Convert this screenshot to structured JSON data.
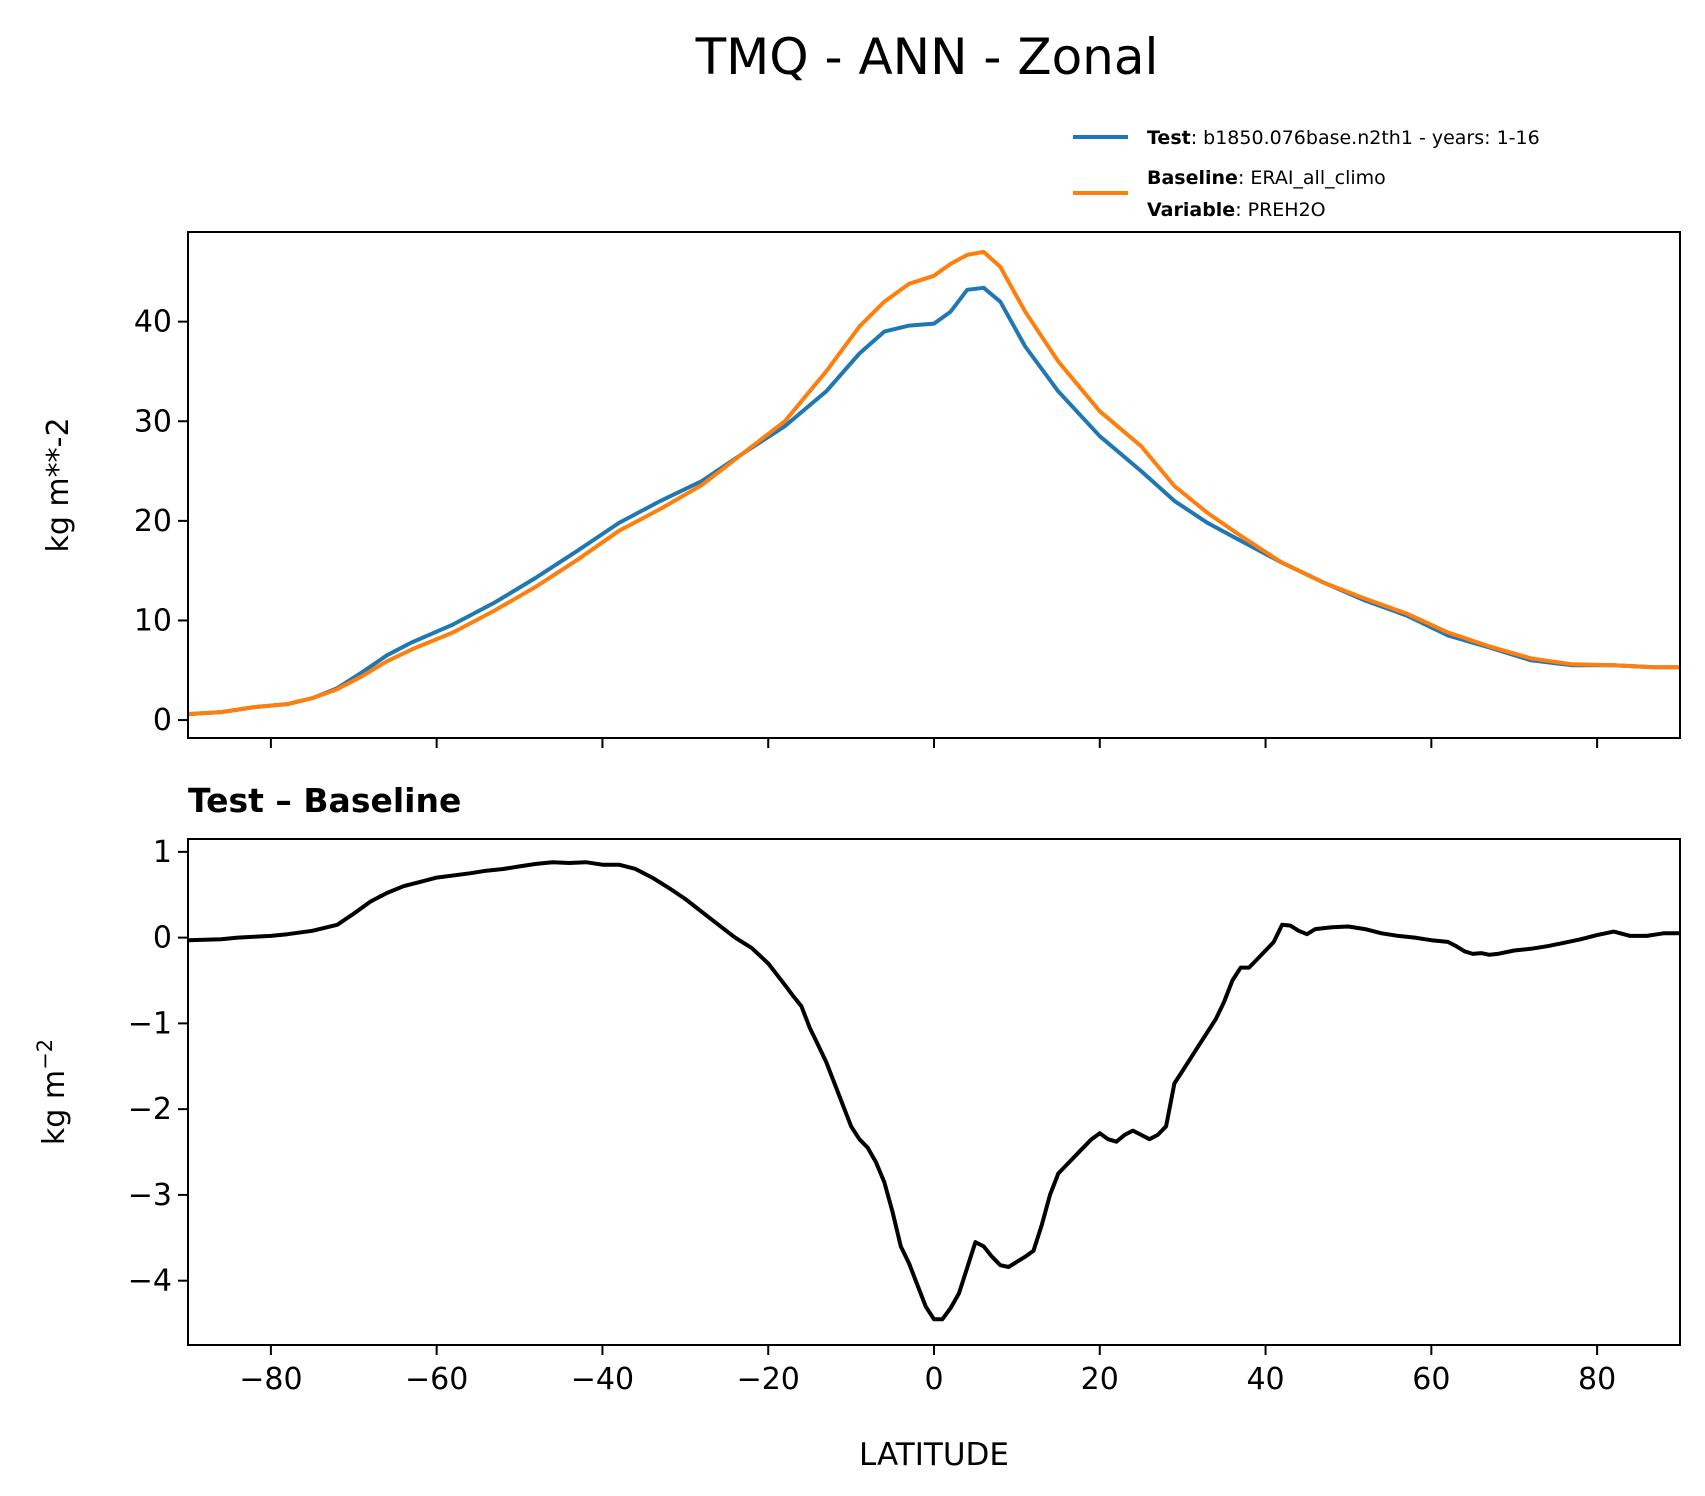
{
  "title": "TMQ - ANN - Zonal",
  "legend": {
    "test_label": "Test",
    "test_text": ": b1850.076base.n2th1 - years: 1-16",
    "baseline_label": "Baseline",
    "baseline_text": ": ERAI_all_climo",
    "variable_label": "Variable",
    "variable_text": ": PREH2O"
  },
  "colors": {
    "test": "#1f77b4",
    "baseline": "#ff7f0e",
    "diff": "#000000"
  },
  "chart_data": [
    {
      "type": "line",
      "ylabel": "kg m**-2",
      "xlim": [
        -90,
        90
      ],
      "ylim": [
        -1.8,
        49
      ],
      "yticks": [
        0,
        10,
        20,
        30,
        40
      ],
      "xticks": [
        -80,
        -60,
        -40,
        -20,
        0,
        20,
        40,
        60,
        80
      ],
      "series": [
        {
          "name": "Test",
          "x": [
            -90,
            -86,
            -82,
            -78,
            -75,
            -72,
            -69,
            -66,
            -63,
            -58,
            -53,
            -48,
            -43,
            -38,
            -33,
            -28,
            -23,
            -18,
            -13,
            -9,
            -6,
            -3,
            0,
            2,
            4,
            6,
            8,
            11,
            15,
            20,
            25,
            29,
            33,
            37,
            42,
            47,
            52,
            57,
            62,
            67,
            72,
            77,
            82,
            87,
            90
          ],
          "values": [
            0.6,
            0.8,
            1.3,
            1.6,
            2.2,
            3.2,
            4.8,
            6.5,
            7.8,
            9.6,
            11.8,
            14.3,
            17.0,
            19.8,
            22.0,
            24.0,
            26.8,
            29.5,
            33.0,
            36.8,
            39.0,
            39.6,
            39.8,
            41.0,
            43.2,
            43.4,
            42.0,
            37.5,
            33.0,
            28.5,
            25.0,
            22.0,
            19.8,
            18.0,
            15.8,
            13.8,
            12.0,
            10.5,
            8.5,
            7.3,
            6.0,
            5.5,
            5.5,
            5.3,
            5.3
          ]
        },
        {
          "name": "Baseline",
          "x": [
            -90,
            -86,
            -82,
            -78,
            -75,
            -72,
            -69,
            -66,
            -63,
            -58,
            -53,
            -48,
            -43,
            -38,
            -33,
            -28,
            -23,
            -18,
            -13,
            -9,
            -6,
            -3,
            0,
            2,
            4,
            6,
            8,
            11,
            15,
            20,
            25,
            29,
            33,
            37,
            42,
            47,
            52,
            57,
            62,
            67,
            72,
            77,
            82,
            87,
            90
          ],
          "values": [
            0.6,
            0.8,
            1.3,
            1.6,
            2.2,
            3.1,
            4.4,
            5.9,
            7.1,
            8.8,
            11.0,
            13.4,
            16.1,
            19.0,
            21.2,
            23.6,
            26.8,
            30.0,
            35.0,
            39.5,
            42.0,
            43.8,
            44.6,
            45.8,
            46.7,
            47.0,
            45.5,
            41.0,
            36.0,
            31.0,
            27.5,
            23.5,
            20.8,
            18.5,
            15.8,
            13.8,
            12.2,
            10.7,
            8.8,
            7.4,
            6.2,
            5.6,
            5.5,
            5.3,
            5.3
          ]
        }
      ]
    },
    {
      "type": "line",
      "title": "Test – Baseline",
      "ylabel": "kg m",
      "ylabel_sup": "−2",
      "xlabel": "LATITUDE",
      "xlim": [
        -90,
        90
      ],
      "ylim": [
        -4.75,
        1.15
      ],
      "yticks": [
        1,
        0,
        -1,
        -2,
        -3,
        -4
      ],
      "ytick_labels": [
        "1",
        "0",
        "−1",
        "−2",
        "−3",
        "−4"
      ],
      "xticks": [
        -80,
        -60,
        -40,
        -20,
        0,
        20,
        40,
        60,
        80
      ],
      "xtick_labels": [
        "−80",
        "−60",
        "−40",
        "−20",
        "0",
        "20",
        "40",
        "60",
        "80"
      ],
      "series": [
        {
          "x": [
            -90,
            -86,
            -84,
            -82,
            -80,
            -78,
            -75,
            -72,
            -70,
            -68,
            -66,
            -64,
            -62,
            -60,
            -56,
            -54,
            -52,
            -50,
            -48,
            -46,
            -44,
            -42,
            -40,
            -38,
            -36,
            -34,
            -32,
            -30,
            -28,
            -26,
            -24,
            -22,
            -20,
            -18,
            -17,
            -16,
            -15,
            -14,
            -13,
            -12,
            -11,
            -10,
            -9,
            -8,
            -7,
            -6,
            -5,
            -4,
            -3,
            -2,
            -1,
            0,
            1,
            2,
            3,
            4,
            5,
            6,
            7,
            8,
            9,
            10,
            11,
            12,
            13,
            14,
            15,
            16,
            17,
            18,
            19,
            20,
            21,
            22,
            23,
            24,
            25,
            26,
            27,
            28,
            29,
            30,
            31,
            32,
            33,
            34,
            35,
            36,
            37,
            38,
            39,
            40,
            41,
            42,
            43,
            44,
            45,
            46,
            48,
            50,
            52,
            54,
            56,
            58,
            60,
            62,
            63,
            64,
            65,
            66,
            67,
            68,
            70,
            72,
            74,
            76,
            78,
            80,
            82,
            84,
            86,
            88,
            90
          ],
          "values": [
            -0.03,
            -0.02,
            0.0,
            0.01,
            0.02,
            0.04,
            0.08,
            0.15,
            0.28,
            0.42,
            0.52,
            0.6,
            0.65,
            0.7,
            0.75,
            0.78,
            0.8,
            0.83,
            0.86,
            0.88,
            0.87,
            0.88,
            0.85,
            0.85,
            0.8,
            0.7,
            0.58,
            0.45,
            0.3,
            0.15,
            0.0,
            -0.12,
            -0.3,
            -0.55,
            -0.68,
            -0.8,
            -1.05,
            -1.25,
            -1.45,
            -1.7,
            -1.95,
            -2.2,
            -2.35,
            -2.45,
            -2.62,
            -2.85,
            -3.2,
            -3.6,
            -3.8,
            -4.05,
            -4.3,
            -4.45,
            -4.45,
            -4.32,
            -4.15,
            -3.85,
            -3.55,
            -3.6,
            -3.72,
            -3.82,
            -3.84,
            -3.78,
            -3.72,
            -3.65,
            -3.35,
            -3.0,
            -2.75,
            -2.65,
            -2.55,
            -2.45,
            -2.35,
            -2.28,
            -2.35,
            -2.38,
            -2.3,
            -2.25,
            -2.3,
            -2.35,
            -2.3,
            -2.2,
            -1.7,
            -1.55,
            -1.4,
            -1.25,
            -1.1,
            -0.95,
            -0.75,
            -0.5,
            -0.35,
            -0.35,
            -0.25,
            -0.15,
            -0.05,
            0.15,
            0.14,
            0.08,
            0.04,
            0.1,
            0.12,
            0.13,
            0.1,
            0.05,
            0.02,
            0.0,
            -0.03,
            -0.05,
            -0.1,
            -0.16,
            -0.19,
            -0.18,
            -0.2,
            -0.19,
            -0.15,
            -0.13,
            -0.1,
            -0.06,
            -0.02,
            0.03,
            0.07,
            0.02,
            0.02,
            0.05,
            0.05
          ]
        }
      ]
    }
  ]
}
